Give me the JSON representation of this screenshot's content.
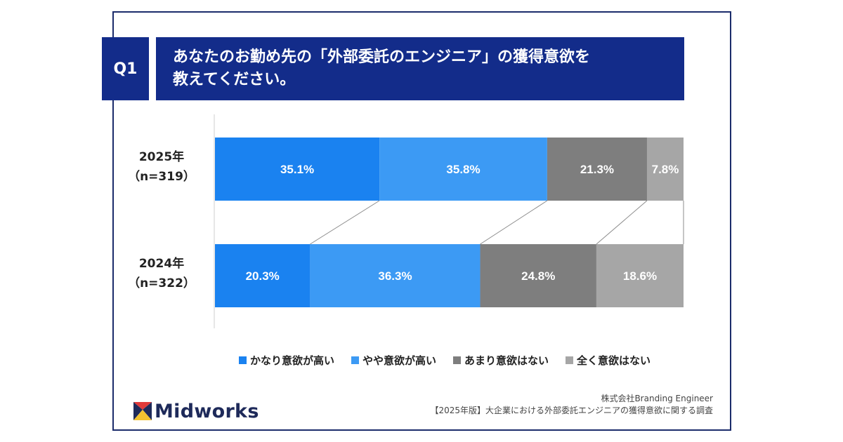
{
  "question": {
    "badge": "Q1",
    "line1": "あなたのお勤め先の「外部委託のエンジニア」の獲得意欲を",
    "line2": "教えてください。"
  },
  "rows": [
    {
      "year": "2025年",
      "n": "（n=319）"
    },
    {
      "year": "2024年",
      "n": "（n=322）"
    }
  ],
  "colors": [
    "#1a82f0",
    "#3c9af4",
    "#7e7e7e",
    "#a6a6a6"
  ],
  "chart_data": {
    "type": "bar",
    "orientation": "horizontal",
    "stacked": true,
    "percent": true,
    "categories": [
      "2025年（n=319）",
      "2024年（n=322）"
    ],
    "series": [
      {
        "name": "かなり意欲が高い",
        "values": [
          35.1,
          20.3
        ]
      },
      {
        "name": "やや意欲が高い",
        "values": [
          35.8,
          36.3
        ]
      },
      {
        "name": "あまり意欲はない",
        "values": [
          21.3,
          24.8
        ]
      },
      {
        "name": "全く意欲はない",
        "values": [
          7.8,
          18.6
        ]
      }
    ],
    "labels": [
      [
        "35.1%",
        "35.8%",
        "21.3%",
        "7.8%"
      ],
      [
        "20.3%",
        "36.3%",
        "24.8%",
        "18.6%"
      ]
    ],
    "legend_position": "bottom",
    "xlim": [
      0,
      100
    ]
  },
  "legend": [
    "かなり意欲が高い",
    "やや意欲が高い",
    "あまり意欲はない",
    "全く意欲はない"
  ],
  "brand": {
    "name": "Midworks"
  },
  "source": {
    "company": "株式会社Branding Engineer",
    "report": "【2025年版】大企業における外部委託エンジニアの獲得意欲に関する調査"
  }
}
